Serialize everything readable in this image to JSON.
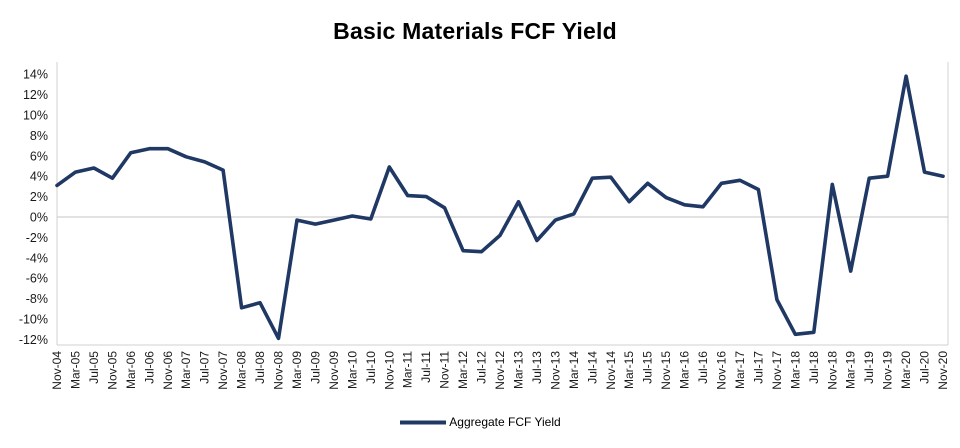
{
  "chart_data": {
    "type": "line",
    "title": "Basic Materials FCF Yield",
    "categories": [
      "Nov-04",
      "Mar-05",
      "Jul-05",
      "Nov-05",
      "Mar-06",
      "Jul-06",
      "Nov-06",
      "Mar-07",
      "Jul-07",
      "Nov-07",
      "Mar-08",
      "Jul-08",
      "Nov-08",
      "Mar-09",
      "Jul-09",
      "Nov-09",
      "Mar-10",
      "Jul-10",
      "Nov-10",
      "Mar-11",
      "Jul-11",
      "Nov-11",
      "Mar-12",
      "Jul-12",
      "Nov-12",
      "Mar-13",
      "Jul-13",
      "Nov-13",
      "Mar-14",
      "Jul-14",
      "Nov-14",
      "Mar-15",
      "Jul-15",
      "Nov-15",
      "Mar-16",
      "Jul-16",
      "Nov-16",
      "Mar-17",
      "Jul-17",
      "Nov-17",
      "Mar-18",
      "Jul-18",
      "Nov-18",
      "Mar-19",
      "Jul-19",
      "Nov-19",
      "Mar-20",
      "Jul-20",
      "Nov-20"
    ],
    "series": [
      {
        "name": "Aggregate FCF Yield",
        "values": [
          3.1,
          4.4,
          4.8,
          3.8,
          6.3,
          6.7,
          6.7,
          5.9,
          5.4,
          4.6,
          -8.9,
          -8.4,
          -11.9,
          -0.3,
          -0.7,
          -0.3,
          0.1,
          -0.2,
          4.9,
          2.1,
          2.0,
          0.9,
          -3.3,
          -3.4,
          -1.8,
          1.5,
          -2.3,
          -0.3,
          0.3,
          3.8,
          3.9,
          1.5,
          3.3,
          1.9,
          1.2,
          1.0,
          3.3,
          3.6,
          2.7,
          -8.1,
          -11.5,
          -11.3,
          3.2,
          -5.3,
          3.8,
          4.0,
          13.8,
          4.4,
          4.0
        ]
      }
    ],
    "xlabel": "",
    "ylabel": "",
    "ylim": [
      -12,
      14
    ],
    "y_tick_step": 2,
    "y_ticks": [
      14,
      12,
      10,
      8,
      6,
      4,
      2,
      0,
      -2,
      -4,
      -6,
      -8,
      -10,
      -12
    ],
    "y_tick_suffix": "%",
    "grid": "zero-line-only",
    "legend_position": "bottom",
    "line_color": "#1f3864",
    "axis_line_color": "#d0d0d0",
    "label_color": "#1a1a1a"
  }
}
